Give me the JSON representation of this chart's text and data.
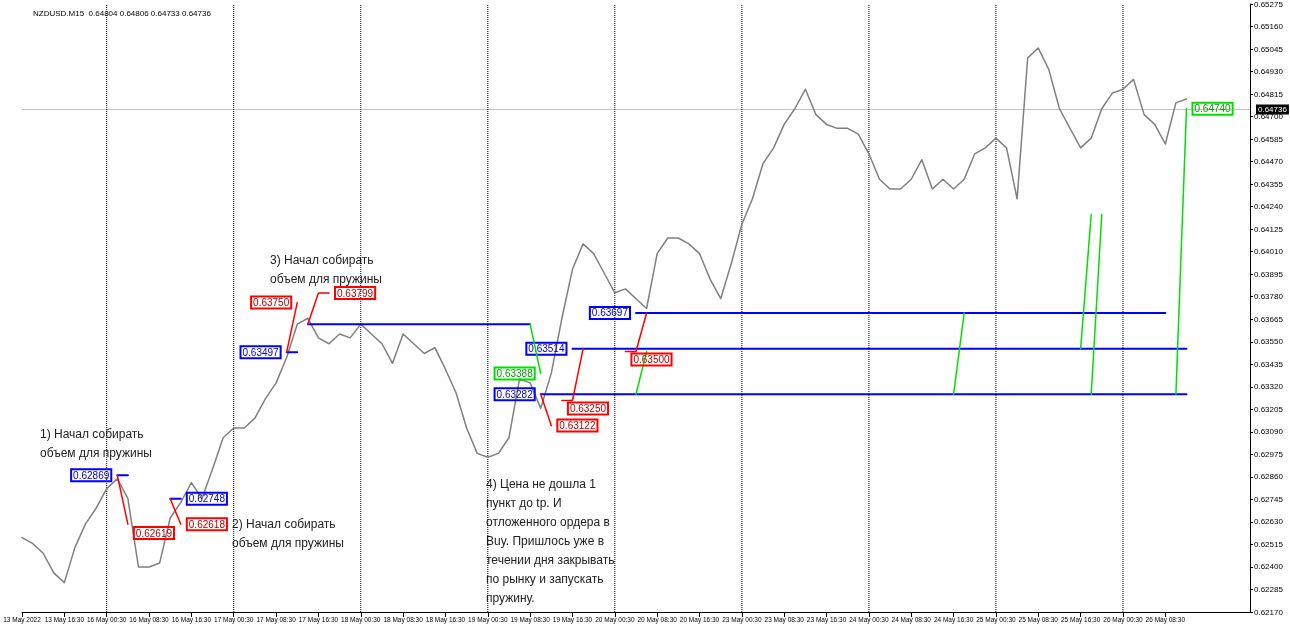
{
  "chart_data": {
    "type": "line",
    "title": "NZDUSD.M15  0.64804 0.64806 0.64733 0.64736",
    "categories": [
      "13 May 2022",
      null,
      null,
      null,
      "13 May 16:30",
      null,
      null,
      null,
      "16 May 00:30",
      null,
      null,
      null,
      "16 May 08:30",
      null,
      null,
      null,
      "16 May 16:30",
      null,
      null,
      null,
      "17 May 00:30",
      null,
      null,
      null,
      "17 May 08:30",
      null,
      null,
      null,
      "17 May 16:30",
      null,
      null,
      null,
      "18 May 00:30",
      null,
      null,
      null,
      "18 May 08:30",
      null,
      null,
      null,
      "18 May 16:30",
      null,
      null,
      null,
      "19 May 00:30",
      null,
      null,
      null,
      "19 May 08:30",
      null,
      null,
      null,
      "19 May 16:30",
      null,
      null,
      null,
      "20 May 00:30",
      null,
      null,
      null,
      "20 May 08:30",
      null,
      null,
      null,
      "20 May 16:30",
      null,
      null,
      null,
      "23 May 00:30",
      null,
      null,
      null,
      "23 May 08:30",
      null,
      null,
      null,
      "23 May 16:30",
      null,
      null,
      null,
      "24 May 00:30",
      null,
      null,
      null,
      "24 May 08:30",
      null,
      null,
      null,
      "24 May 16:30",
      null,
      null,
      null,
      "25 May 00:30",
      null,
      null,
      null,
      "25 May 08:30",
      null,
      null,
      null,
      "25 May 16:30",
      null,
      null,
      null,
      "26 May 00:30",
      null,
      null,
      null,
      "26 May 08:30",
      null,
      null,
      null,
      null,
      null,
      null,
      null,
      null
    ],
    "ylim": [
      0.6217,
      0.65275
    ],
    "yticks": [
      0.65275,
      {
        "value": 0.6516,
        "label": "0.65160"
      },
      0.65045,
      {
        "value": 0.6493,
        "label": "0.64930"
      },
      0.64815,
      {
        "value": 0.647,
        "label": "0.64700"
      },
      0.64585,
      {
        "value": 0.6447,
        "label": "0.64470"
      },
      0.64355,
      {
        "value": 0.6424,
        "label": "0.64240"
      },
      0.64125,
      {
        "value": 0.6401,
        "label": "0.64010"
      },
      0.63895,
      {
        "value": 0.6378,
        "label": "0.63780"
      },
      0.63665,
      {
        "value": 0.6355,
        "label": "0.63550"
      },
      0.63435,
      {
        "value": 0.6332,
        "label": "0.63320"
      },
      0.63205,
      {
        "value": 0.6309,
        "label": "0.63090"
      },
      0.62975,
      {
        "value": 0.6286,
        "label": "0.62860"
      },
      0.62745,
      {
        "value": 0.6263,
        "label": "0.62630"
      },
      0.62515,
      {
        "value": 0.624,
        "label": "0.62400"
      },
      0.62285,
      {
        "value": 0.6217,
        "label": "0.62170"
      }
    ],
    "series": [
      {
        "color": "#808080",
        "values": [
          0.6255,
          0.6252,
          0.6247,
          0.6237,
          0.6232,
          0.625,
          0.6262,
          0.627,
          0.628,
          0.6285,
          0.6275,
          0.624,
          0.624,
          0.6242,
          0.6265,
          0.6273,
          0.6283,
          0.6275,
          0.629,
          0.6306,
          0.6311,
          0.6311,
          0.6316,
          0.6326,
          0.6334,
          0.6347,
          0.6364,
          0.6367,
          0.6357,
          0.6354,
          0.6359,
          0.6357,
          0.6364,
          0.6359,
          0.6354,
          0.6344,
          0.6359,
          0.6354,
          0.6349,
          0.6352,
          0.6341,
          0.6329,
          0.6311,
          0.6298,
          0.6296,
          0.6298,
          0.6306,
          0.6336,
          0.6334,
          0.6321,
          0.6339,
          0.6367,
          0.6392,
          0.6405,
          0.64,
          0.639,
          0.638,
          0.6382,
          0.6377,
          0.6372,
          0.64,
          0.6408,
          0.6408,
          0.6405,
          0.64,
          0.6387,
          0.6377,
          0.6395,
          0.6415,
          0.6428,
          0.6446,
          0.6454,
          0.6466,
          0.6474,
          0.6484,
          0.6471,
          0.6466,
          0.6464,
          0.6464,
          0.6461,
          0.6451,
          0.6438,
          0.6433,
          0.6433,
          0.6438,
          0.6448,
          0.6433,
          0.6438,
          0.6433,
          0.6438,
          0.6451,
          0.6454,
          0.6459,
          0.6454,
          0.6428,
          0.65,
          0.6505,
          0.6494,
          0.6474,
          0.6464,
          0.6454,
          0.6459,
          0.6474,
          0.6482,
          0.6484,
          0.6489,
          0.6471,
          0.6466,
          0.6456,
          0.6477,
          0.6479,
          null,
          null,
          null,
          null,
          null,
          null
        ]
      },
      {
        "color": "#0000ff",
        "values": [
          null,
          null,
          null,
          null,
          null,
          null,
          null,
          null,
          null,
          0.62869,
          0.62869,
          null,
          null,
          null,
          0.62748,
          0.62748,
          null,
          null,
          null,
          null,
          null,
          null,
          null,
          null,
          null,
          0.63497,
          0.63497,
          null,
          null,
          null,
          null,
          null,
          null,
          null,
          null,
          null,
          null,
          null,
          null,
          null,
          null,
          null,
          null,
          null,
          null,
          null,
          null,
          null,
          null,
          null,
          null,
          null,
          null,
          null,
          null,
          null,
          null,
          null,
          null,
          null,
          null,
          null,
          null,
          null,
          null,
          null,
          null,
          null,
          null,
          null,
          null,
          null,
          null,
          null,
          null,
          null,
          null,
          null,
          null,
          null,
          null,
          null,
          null,
          null,
          null,
          null,
          null,
          null,
          null,
          null,
          null,
          null,
          null,
          null,
          null,
          null,
          null,
          null,
          null,
          null,
          null,
          null,
          null,
          null,
          null,
          null,
          null,
          null,
          null,
          null,
          null,
          null,
          null,
          null,
          null,
          null,
          null
        ],
        "value_labels": [
          null,
          null,
          null,
          null,
          null,
          null,
          null,
          null,
          null,
          "0.62869",
          null,
          null,
          null,
          null,
          null,
          "0.62748",
          null,
          null,
          null,
          null,
          null,
          null,
          null,
          null,
          null,
          "0.63497",
          null,
          null,
          null,
          null,
          null,
          null,
          null,
          null,
          null,
          null,
          null,
          null,
          null,
          null,
          null,
          null,
          null,
          null,
          null,
          null,
          null,
          null,
          null,
          null,
          null,
          null,
          null,
          null,
          null,
          null,
          null,
          null,
          null,
          null,
          null,
          null,
          null,
          null,
          null,
          null,
          null,
          null,
          null,
          null,
          null,
          null,
          null,
          null,
          null,
          null,
          null,
          null,
          null,
          null,
          null,
          null,
          null,
          null,
          null,
          null,
          null,
          null,
          null,
          null,
          null,
          null,
          null,
          null,
          null,
          null,
          null,
          null,
          null,
          null,
          null,
          null,
          null,
          null,
          null,
          null,
          null,
          null,
          null,
          null,
          null,
          null,
          null,
          null,
          null,
          null,
          null
        ]
      },
      {
        "color": "#0000ff",
        "values": [
          null,
          null,
          null,
          null,
          null,
          null,
          null,
          null,
          null,
          null,
          null,
          null,
          null,
          null,
          null,
          null,
          null,
          null,
          null,
          null,
          null,
          null,
          null,
          null,
          null,
          null,
          null,
          0.6364,
          0.6364,
          0.6364,
          0.6364,
          0.6364,
          0.6364,
          0.6364,
          0.6364,
          0.6364,
          0.6364,
          0.6364,
          0.6364,
          0.6364,
          0.6364,
          0.6364,
          0.6364,
          0.6364,
          0.6364,
          0.6364,
          0.6364,
          0.6364,
          0.6364,
          null,
          null,
          null,
          0.63514,
          0.63514,
          0.63514,
          0.63514,
          0.63514,
          0.63514,
          0.63514,
          0.63514,
          0.63514,
          0.63514,
          0.63514,
          0.63514,
          0.63514,
          0.63514,
          0.63514,
          0.63514,
          0.63514,
          0.63514,
          0.63514,
          0.63514,
          0.63514,
          0.63514,
          0.63514,
          0.63514,
          0.63514,
          0.63514,
          0.63514,
          0.63514,
          0.63514,
          0.63514,
          0.63514,
          0.63514,
          0.63514,
          0.63514,
          0.63514,
          0.63514,
          0.63514,
          0.63514,
          0.63514,
          0.63514,
          0.63514,
          0.63514,
          0.63514,
          0.63514,
          0.63514,
          0.63514,
          0.63514,
          0.63514,
          0.63514,
          0.63514,
          0.63514,
          0.63514,
          0.63514,
          0.63514,
          0.63514,
          0.63514,
          0.63514,
          0.63514,
          0.63514,
          null,
          null,
          null,
          null,
          null,
          null
        ],
        "value_labels": [
          null,
          null,
          null,
          null,
          null,
          null,
          null,
          null,
          null,
          null,
          null,
          null,
          null,
          null,
          null,
          null,
          null,
          null,
          null,
          null,
          null,
          null,
          null,
          null,
          null,
          null,
          null,
          null,
          null,
          null,
          null,
          null,
          null,
          null,
          null,
          null,
          null,
          null,
          null,
          null,
          null,
          null,
          null,
          null,
          null,
          null,
          null,
          null,
          null,
          null,
          null,
          null,
          "0.63514",
          null,
          null,
          null,
          null,
          null,
          null,
          null,
          null,
          null,
          null,
          null,
          null,
          null,
          null,
          null,
          null,
          null,
          null,
          null,
          null,
          null,
          null,
          null,
          null,
          null,
          null,
          null,
          null,
          null,
          null,
          null,
          null,
          null,
          null,
          null,
          null,
          null,
          null,
          null,
          null,
          null,
          null,
          null,
          null,
          null,
          null,
          null,
          null,
          null,
          null,
          null,
          null,
          null,
          null,
          null,
          null,
          null,
          null,
          null,
          null,
          null,
          null,
          null,
          null
        ]
      },
      {
        "color": "#0000ff",
        "values": [
          null,
          null,
          null,
          null,
          null,
          null,
          null,
          null,
          null,
          null,
          null,
          null,
          null,
          null,
          null,
          null,
          null,
          null,
          null,
          null,
          null,
          null,
          null,
          null,
          null,
          null,
          null,
          null,
          null,
          null,
          null,
          null,
          null,
          null,
          null,
          null,
          null,
          null,
          null,
          null,
          null,
          null,
          null,
          null,
          null,
          null,
          null,
          null,
          null,
          0.63282,
          0.63282,
          0.63282,
          0.63282,
          0.63282,
          0.63282,
          0.63282,
          0.63282,
          0.63282,
          0.63282,
          0.63282,
          0.63282,
          0.63282,
          0.63282,
          0.63282,
          0.63282,
          0.63282,
          0.63282,
          0.63282,
          0.63282,
          0.63282,
          0.63282,
          0.63282,
          0.63282,
          0.63282,
          0.63282,
          0.63282,
          0.63282,
          0.63282,
          0.63282,
          0.63282,
          0.63282,
          0.63282,
          0.63282,
          0.63282,
          0.63282,
          0.63282,
          0.63282,
          0.63282,
          0.63282,
          0.63282,
          0.63282,
          0.63282,
          0.63282,
          0.63282,
          0.63282,
          0.63282,
          0.63282,
          0.63282,
          0.63282,
          0.63282,
          0.63282,
          0.63282,
          0.63282,
          0.63282,
          0.63282,
          0.63282,
          0.63282,
          0.63282,
          0.63282,
          0.63282,
          0.63282,
          null,
          null,
          null,
          null,
          null,
          null
        ],
        "value_labels": [
          null,
          null,
          null,
          null,
          null,
          null,
          null,
          null,
          null,
          null,
          null,
          null,
          null,
          null,
          null,
          null,
          null,
          null,
          null,
          null,
          null,
          null,
          null,
          null,
          null,
          null,
          null,
          null,
          null,
          null,
          null,
          null,
          null,
          null,
          null,
          null,
          null,
          null,
          null,
          null,
          null,
          null,
          null,
          null,
          null,
          null,
          null,
          null,
          null,
          "0.63282",
          null,
          null,
          null,
          null,
          null,
          null,
          null,
          null,
          null,
          null,
          null,
          null,
          null,
          null,
          null,
          null,
          null,
          null,
          null,
          null,
          null,
          null,
          null,
          null,
          null,
          null,
          null,
          null,
          null,
          null,
          null,
          null,
          null,
          null,
          null,
          null,
          null,
          null,
          null,
          null,
          null,
          null,
          null,
          null,
          null,
          null,
          null,
          null,
          null,
          null,
          null,
          null,
          null,
          null,
          null,
          null,
          null,
          null,
          null,
          null,
          null,
          null,
          null,
          null,
          null,
          null,
          null
        ]
      },
      {
        "color": "#0000ff",
        "values": [
          null,
          null,
          null,
          null,
          null,
          null,
          null,
          null,
          null,
          null,
          null,
          null,
          null,
          null,
          null,
          null,
          null,
          null,
          null,
          null,
          null,
          null,
          null,
          null,
          null,
          null,
          null,
          null,
          null,
          null,
          null,
          null,
          null,
          null,
          null,
          null,
          null,
          null,
          null,
          null,
          null,
          null,
          null,
          null,
          null,
          null,
          null,
          null,
          null,
          null,
          null,
          null,
          null,
          null,
          null,
          null,
          null,
          null,
          0.63697,
          0.63697,
          0.63697,
          0.63697,
          0.63697,
          0.63697,
          0.63697,
          0.63697,
          0.63697,
          0.63697,
          0.63697,
          0.63697,
          0.63697,
          0.63697,
          0.63697,
          0.63697,
          0.63697,
          0.63697,
          0.63697,
          0.63697,
          0.63697,
          0.63697,
          0.63697,
          0.63697,
          0.63697,
          0.63697,
          0.63697,
          0.63697,
          0.63697,
          0.63697,
          0.63697,
          0.63697,
          0.63697,
          0.63697,
          0.63697,
          0.63697,
          0.63697,
          0.63697,
          0.63697,
          0.63697,
          0.63697,
          0.63697,
          0.63697,
          0.63697,
          0.63697,
          0.63697,
          0.63697,
          0.63697,
          0.63697,
          0.63697,
          0.63697,
          null,
          null,
          null,
          null,
          null,
          null,
          null,
          null
        ],
        "value_labels": [
          null,
          null,
          null,
          null,
          null,
          null,
          null,
          null,
          null,
          null,
          null,
          null,
          null,
          null,
          null,
          null,
          null,
          null,
          null,
          null,
          null,
          null,
          null,
          null,
          null,
          null,
          null,
          null,
          null,
          null,
          null,
          null,
          null,
          null,
          null,
          null,
          null,
          null,
          null,
          null,
          null,
          null,
          null,
          null,
          null,
          null,
          null,
          null,
          null,
          null,
          null,
          null,
          null,
          null,
          null,
          null,
          null,
          null,
          "0.63697",
          null,
          null,
          null,
          null,
          null,
          null,
          null,
          null,
          null,
          null,
          null,
          null,
          null,
          null,
          null,
          null,
          null,
          null,
          null,
          null,
          null,
          null,
          null,
          null,
          null,
          null,
          null,
          null,
          null,
          null,
          null,
          null,
          null,
          null,
          null,
          null,
          null,
          null,
          null,
          null,
          null,
          null,
          null,
          null,
          null,
          null,
          null,
          null,
          null,
          null,
          null,
          null,
          null,
          null,
          null,
          null,
          null,
          null
        ]
      },
      {
        "color": "#ff0000",
        "values": [
          null,
          null,
          null,
          null,
          null,
          null,
          null,
          null,
          null,
          0.62869,
          0.62619,
          null,
          null,
          null,
          0.62748,
          0.62618,
          null,
          null,
          null,
          null,
          null,
          null,
          null,
          null,
          null,
          0.63497,
          0.6375,
          null,
          null,
          null,
          null,
          null,
          null,
          null,
          null,
          null,
          null,
          null,
          null,
          null,
          null,
          null,
          null,
          null,
          null,
          null,
          null,
          null,
          null,
          0.63282,
          0.63122,
          null,
          null,
          null,
          null,
          null,
          null,
          0.635,
          0.635,
          0.63697,
          null,
          null,
          null,
          null,
          null,
          null,
          null,
          null,
          null,
          null,
          null,
          null,
          null,
          null,
          null,
          null,
          null,
          null,
          null,
          null,
          null,
          null,
          null,
          null,
          null,
          null,
          null,
          null,
          null,
          null,
          null,
          null,
          null,
          null,
          null,
          null,
          null,
          null,
          null,
          null,
          null,
          null,
          null,
          null,
          null,
          null,
          null,
          null,
          null,
          null,
          null,
          null,
          null,
          null,
          null,
          null,
          null
        ],
        "value_labels": [
          null,
          null,
          null,
          null,
          null,
          null,
          null,
          null,
          null,
          null,
          "0.62619",
          null,
          null,
          null,
          null,
          "0.62618",
          null,
          null,
          null,
          null,
          null,
          null,
          null,
          null,
          null,
          null,
          "0.63750",
          null,
          null,
          null,
          null,
          null,
          null,
          null,
          null,
          null,
          null,
          null,
          null,
          null,
          null,
          null,
          null,
          null,
          null,
          null,
          null,
          null,
          null,
          null,
          "0.63122",
          null,
          null,
          null,
          null,
          null,
          null,
          "0.63500",
          null,
          null,
          null,
          null,
          null,
          null,
          null,
          null,
          null,
          null,
          null,
          null,
          null,
          null,
          null,
          null,
          null,
          null,
          null,
          null,
          null,
          null,
          null,
          null,
          null,
          null,
          null,
          null,
          null,
          null,
          null,
          null,
          null,
          null,
          null,
          null,
          null,
          null,
          null,
          null,
          null,
          null,
          null,
          null,
          null,
          null,
          null,
          null,
          null,
          null,
          null,
          null,
          null,
          null,
          null,
          null,
          null,
          null,
          null
        ]
      },
      {
        "color": "#ff0000",
        "values": [
          null,
          null,
          null,
          null,
          null,
          null,
          null,
          null,
          null,
          null,
          null,
          null,
          null,
          null,
          null,
          null,
          null,
          null,
          null,
          null,
          null,
          null,
          null,
          null,
          null,
          null,
          null,
          0.6364,
          0.63799,
          0.63799,
          null,
          null,
          null,
          null,
          null,
          null,
          null,
          null,
          null,
          null,
          null,
          null,
          null,
          null,
          null,
          null,
          null,
          null,
          null,
          null,
          null,
          0.6325,
          0.6325,
          0.63514,
          null,
          null,
          null,
          null,
          null,
          null,
          null,
          null,
          null,
          null,
          null,
          null,
          null,
          null,
          null,
          null,
          null,
          null,
          null,
          null,
          null,
          null,
          null,
          null,
          null,
          null,
          null,
          null,
          null,
          null,
          null,
          null,
          null,
          null,
          null,
          null,
          null,
          null,
          null,
          null,
          null,
          null,
          null,
          null,
          null,
          null,
          null,
          null,
          null,
          null,
          null,
          null,
          null,
          null,
          null,
          null,
          null,
          null,
          null,
          null,
          null,
          null,
          null
        ],
        "value_labels": [
          null,
          null,
          null,
          null,
          null,
          null,
          null,
          null,
          null,
          null,
          null,
          null,
          null,
          null,
          null,
          null,
          null,
          null,
          null,
          null,
          null,
          null,
          null,
          null,
          null,
          null,
          null,
          null,
          null,
          "0.63799",
          null,
          null,
          null,
          null,
          null,
          null,
          null,
          null,
          null,
          null,
          null,
          null,
          null,
          null,
          null,
          null,
          null,
          null,
          null,
          null,
          null,
          "0.63250",
          null,
          null,
          null,
          null,
          null,
          null,
          null,
          null,
          null,
          null,
          null,
          null,
          null,
          null,
          null,
          null,
          null,
          null,
          null,
          null,
          null,
          null,
          null,
          null,
          null,
          null,
          null,
          null,
          null,
          null,
          null,
          null,
          null,
          null,
          null,
          null,
          null,
          null,
          null,
          null,
          null,
          null,
          null,
          null,
          null,
          null,
          null,
          null,
          null,
          null,
          null,
          null,
          null,
          null,
          null,
          null,
          null,
          null,
          null,
          null,
          null,
          null,
          null,
          null,
          null
        ]
      },
      {
        "color": "#00e000",
        "values": [
          null,
          null,
          null,
          null,
          null,
          null,
          null,
          null,
          null,
          null,
          null,
          null,
          null,
          null,
          null,
          null,
          null,
          null,
          null,
          null,
          null,
          null,
          null,
          null,
          null,
          null,
          null,
          null,
          null,
          null,
          null,
          null,
          null,
          null,
          null,
          null,
          null,
          null,
          null,
          null,
          null,
          null,
          null,
          null,
          null,
          null,
          null,
          null,
          0.6364,
          0.63388,
          null,
          null,
          null,
          null,
          null,
          null,
          null,
          null,
          0.63282,
          0.635,
          null,
          null,
          null,
          null,
          null,
          null,
          null,
          null,
          null,
          null,
          null,
          null,
          null,
          null,
          null,
          null,
          null,
          null,
          null,
          null,
          null,
          null,
          null,
          null,
          null,
          null,
          null,
          null,
          0.63282,
          0.63697,
          null,
          null,
          null,
          null,
          null,
          null,
          null,
          null,
          null,
          null,
          0.63514,
          0.642,
          null,
          null,
          null,
          null,
          null,
          null,
          null,
          0.63282,
          0.6474,
          null,
          null,
          null,
          null,
          null,
          null
        ],
        "value_labels": [
          null,
          null,
          null,
          null,
          null,
          null,
          null,
          null,
          null,
          null,
          null,
          null,
          null,
          null,
          null,
          null,
          null,
          null,
          null,
          null,
          null,
          null,
          null,
          null,
          null,
          null,
          null,
          null,
          null,
          null,
          null,
          null,
          null,
          null,
          null,
          null,
          null,
          null,
          null,
          null,
          null,
          null,
          null,
          null,
          null,
          null,
          null,
          null,
          null,
          "0.63388",
          null,
          null,
          null,
          null,
          null,
          null,
          null,
          null,
          null,
          null,
          null,
          null,
          null,
          null,
          null,
          null,
          null,
          null,
          null,
          null,
          null,
          null,
          null,
          null,
          null,
          null,
          null,
          null,
          null,
          null,
          null,
          null,
          null,
          null,
          null,
          null,
          null,
          null,
          null,
          null,
          null,
          null,
          null,
          null,
          null,
          null,
          null,
          null,
          null,
          null,
          null,
          null,
          null,
          null,
          null,
          null,
          null,
          null,
          null,
          null,
          "0.64740",
          null,
          null,
          null,
          null,
          null,
          null
        ]
      },
      {
        "color": "#00e000",
        "values": [
          null,
          null,
          null,
          null,
          null,
          null,
          null,
          null,
          null,
          null,
          null,
          null,
          null,
          null,
          null,
          null,
          null,
          null,
          null,
          null,
          null,
          null,
          null,
          null,
          null,
          null,
          null,
          null,
          null,
          null,
          null,
          null,
          null,
          null,
          null,
          null,
          null,
          null,
          null,
          null,
          null,
          null,
          null,
          null,
          null,
          null,
          null,
          null,
          null,
          null,
          null,
          null,
          null,
          null,
          null,
          null,
          null,
          null,
          null,
          null,
          null,
          null,
          null,
          null,
          null,
          null,
          null,
          null,
          null,
          null,
          null,
          null,
          null,
          null,
          null,
          null,
          null,
          null,
          null,
          null,
          null,
          null,
          null,
          null,
          null,
          null,
          null,
          null,
          null,
          null,
          null,
          null,
          null,
          null,
          null,
          null,
          null,
          null,
          null,
          null,
          null,
          0.63282,
          0.642,
          null,
          null,
          null,
          null,
          null,
          null,
          null,
          null,
          null,
          null,
          null,
          null,
          null,
          null
        ]
      }
    ],
    "ref_lines": [
      {
        "axis": "y",
        "value": 0.64736,
        "label": "0.64736",
        "color": "#c0c0c0",
        "line_style": "solid"
      },
      {
        "axis": "x",
        "value": "16 May 00:30",
        "color": "#000000",
        "line_style": "dotted"
      },
      {
        "axis": "x",
        "value": "17 May 00:30",
        "color": "#000000",
        "line_style": "dotted"
      },
      {
        "axis": "x",
        "value": "18 May 00:30",
        "color": "#000000",
        "line_style": "dotted"
      },
      {
        "axis": "x",
        "value": "19 May 00:30",
        "color": "#000000",
        "line_style": "dotted"
      },
      {
        "axis": "x",
        "value": "20 May 00:30",
        "color": "#000000",
        "line_style": "dotted"
      },
      {
        "axis": "x",
        "value": "23 May 00:30",
        "color": "#000000",
        "line_style": "dotted"
      },
      {
        "axis": "x",
        "value": "24 May 00:30",
        "color": "#000000",
        "line_style": "dotted"
      },
      {
        "axis": "x",
        "value": "25 May 00:30",
        "color": "#000000",
        "line_style": "dotted"
      },
      {
        "axis": "x",
        "value": "26 May 00:30",
        "color": "#000000",
        "line_style": "dotted"
      }
    ],
    "annotations": [
      "1) Начал собирать объем для пружины",
      "2) Начал собирать объем для пружины",
      "3) Начал собирать объем для пружины",
      "4) Цена не дошла 1 пункт до tp. И отложенного ордера в Buy. Пришлось уже в течении дня закрывать по рынку и запускать пружину."
    ],
    "marker": "none",
    "line_style": "solid",
    "grid": false
  }
}
